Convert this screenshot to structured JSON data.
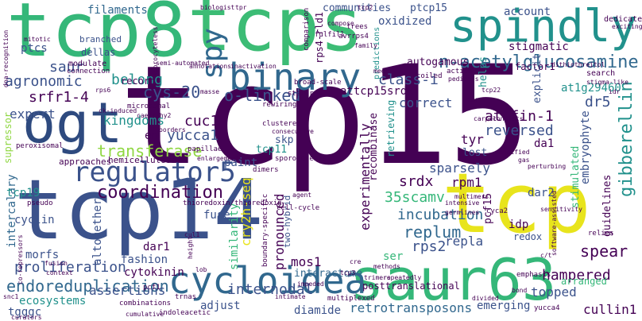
{
  "palette": {
    "dark_purple": "#440154",
    "indigo": "#3b528b",
    "blue": "#31688e",
    "teal": "#21918c",
    "green": "#35b779",
    "lime": "#90d743",
    "yellow": "#e8e41c"
  },
  "words": [
    {
      "text": "tcp15"
    },
    {
      "text": "tcp14"
    },
    {
      "text": "tcp8"
    },
    {
      "text": "tcps"
    },
    {
      "text": "tcp"
    },
    {
      "text": "saur63"
    },
    {
      "text": "ogt"
    },
    {
      "text": "spindly"
    },
    {
      "text": "binary"
    },
    {
      "text": "cycloidea"
    },
    {
      "text": "regulator5"
    },
    {
      "text": "spy"
    },
    {
      "text": "n-acetylglucosamine"
    },
    {
      "text": "gibberellin"
    },
    {
      "text": "coordination"
    },
    {
      "text": "endoreduplication"
    },
    {
      "text": "proliferation"
    },
    {
      "text": "transferase"
    },
    {
      "text": "cys-20"
    },
    {
      "text": "o-linked"
    },
    {
      "text": "agronomic"
    },
    {
      "text": "srfr1-4"
    },
    {
      "text": "belong"
    },
    {
      "text": "saur"
    },
    {
      "text": "expert"
    },
    {
      "text": "kingdoms"
    },
    {
      "text": "cuc1"
    },
    {
      "text": "yucca1"
    },
    {
      "text": "class-i"
    },
    {
      "text": "attcp15srdx"
    },
    {
      "text": "attfin-1"
    },
    {
      "text": "reversed"
    },
    {
      "text": "dr5"
    },
    {
      "text": "at1g29460"
    },
    {
      "text": "embryophyte"
    },
    {
      "text": "spear"
    },
    {
      "text": "hampered"
    },
    {
      "text": "cullin1"
    },
    {
      "text": "topped"
    },
    {
      "text": "emerging"
    },
    {
      "text": "retrotransposons"
    },
    {
      "text": "diamide"
    },
    {
      "text": "internodal"
    },
    {
      "text": "adjust"
    },
    {
      "text": "assertions"
    },
    {
      "text": "ecosystems"
    },
    {
      "text": "tgggc"
    },
    {
      "text": "replum"
    },
    {
      "text": "rps2"
    },
    {
      "text": "repla"
    },
    {
      "text": "incubation"
    },
    {
      "text": "35scamv"
    },
    {
      "text": "experimentally"
    },
    {
      "text": "srdx"
    },
    {
      "text": "rpm1"
    },
    {
      "text": "sparsely"
    },
    {
      "text": "correct"
    },
    {
      "text": "tyr"
    },
    {
      "text": "cry2h-seq"
    },
    {
      "text": "pronounced"
    },
    {
      "text": "similarity"
    },
    {
      "text": "mos1"
    },
    {
      "text": "interactome"
    },
    {
      "text": "dar1"
    },
    {
      "text": "fashion"
    },
    {
      "text": "cytokinin"
    },
    {
      "text": "altogether"
    },
    {
      "text": "intercalary"
    },
    {
      "text": "morfs"
    },
    {
      "text": "cyclin"
    },
    {
      "text": "tcp19"
    },
    {
      "text": "fuse"
    },
    {
      "text": "paint"
    },
    {
      "text": "tcp11"
    },
    {
      "text": "skp"
    },
    {
      "text": "en"
    },
    {
      "text": "filaments"
    },
    {
      "text": "ptcs"
    },
    {
      "text": "communities"
    },
    {
      "text": "oxidized"
    },
    {
      "text": "ptcp15"
    },
    {
      "text": "account"
    },
    {
      "text": "stigmatic"
    },
    {
      "text": "autogamous"
    },
    {
      "text": "rps4-rld1"
    },
    {
      "text": "dedicates"
    },
    {
      "text": "factor1"
    },
    {
      "text": "lost"
    },
    {
      "text": "helps"
    },
    {
      "text": "explicit"
    },
    {
      "text": "da1"
    },
    {
      "text": "dar2"
    },
    {
      "text": "idp"
    },
    {
      "text": "redox"
    },
    {
      "text": "pcf15"
    },
    {
      "text": "stimulated"
    },
    {
      "text": "guidelines"
    },
    {
      "text": "arranged"
    },
    {
      "text": "ser"
    },
    {
      "text": "recombinase"
    },
    {
      "text": "supressor"
    },
    {
      "text": "approaches"
    },
    {
      "text": "hemicelluloses"
    },
    {
      "text": "record"
    },
    {
      "text": "dellas"
    },
    {
      "text": "branched"
    },
    {
      "text": "modulate"
    },
    {
      "text": "connection"
    },
    {
      "text": "dna-recognition"
    },
    {
      "text": "mitotic"
    },
    {
      "text": "retrieving"
    },
    {
      "text": "two-hybrid"
    },
    {
      "text": "cyca2"
    },
    {
      "text": "search"
    },
    {
      "text": "predictions"
    },
    {
      "text": "coiled"
    },
    {
      "text": "action"
    },
    {
      "text": "comparison"
    },
    {
      "text": "fulfill"
    },
    {
      "text": "avrrps4"
    },
    {
      "text": "trees"
    },
    {
      "text": "compose"
    },
    {
      "text": "stature"
    },
    {
      "text": "broad-scale"
    },
    {
      "text": "posttranslational"
    },
    {
      "text": "multiplexed"
    },
    {
      "text": "trnas"
    },
    {
      "text": "combinations"
    },
    {
      "text": "co-repressors"
    },
    {
      "text": "fusion"
    },
    {
      "text": "context"
    },
    {
      "text": "thioredoxin/thioredoxin"
    },
    {
      "text": "boundary-specific"
    },
    {
      "text": "cell-cycle"
    },
    {
      "text": "germlines"
    },
    {
      "text": "intensive"
    },
    {
      "text": "software-assisted"
    },
    {
      "text": "sensitivity"
    },
    {
      "text": "emphasis"
    },
    {
      "text": "relies"
    },
    {
      "text": "yucca4"
    },
    {
      "text": "bond"
    },
    {
      "text": "pcf1"
    },
    {
      "text": "cumulative"
    },
    {
      "text": "indoleacetic"
    },
    {
      "text": "microsomal"
    },
    {
      "text": "masse"
    },
    {
      "text": "rewiring"
    },
    {
      "text": "clustered"
    },
    {
      "text": "consecutive"
    },
    {
      "text": "papillae"
    },
    {
      "text": "enlargement"
    },
    {
      "text": "sporogenesis"
    },
    {
      "text": "dimers"
    },
    {
      "text": "agent"
    },
    {
      "text": "pseudo"
    },
    {
      "text": "peroxisomal"
    },
    {
      "text": "ck-induced"
    },
    {
      "text": "cae1/shy2"
    },
    {
      "text": "annotations"
    },
    {
      "text": "inactivation"
    },
    {
      "text": "semi-automated"
    },
    {
      "text": "sporocyteless"
    },
    {
      "text": "biologist"
    },
    {
      "text": "tpr"
    },
    {
      "text": "tcp2"
    },
    {
      "text": "rps6"
    },
    {
      "text": "borders"
    },
    {
      "text": "family"
    },
    {
      "text": "meet"
    },
    {
      "text": "pedicels"
    },
    {
      "text": "dithiothreitol"
    },
    {
      "text": "stigma-like"
    },
    {
      "text": "idr"
    },
    {
      "text": "tcp22"
    },
    {
      "text": "ear"
    },
    {
      "text": "carpel"
    },
    {
      "text": "modified"
    },
    {
      "text": "gas"
    },
    {
      "text": "perturbing"
    },
    {
      "text": "consists"
    },
    {
      "text": "exciting"
    },
    {
      "text": "cre"
    },
    {
      "text": "methods"
    },
    {
      "text": "trimers"
    },
    {
      "text": "repeatedly"
    },
    {
      "text": "impeded"
    },
    {
      "text": "lob"
    },
    {
      "text": "height"
    },
    {
      "text": "snc1"
    },
    {
      "text": "curators"
    },
    {
      "text": "c/t"
    },
    {
      "text": "divided"
    },
    {
      "text": "tcp3"
    },
    {
      "text": "cul1"
    },
    {
      "text": "intimate"
    },
    {
      "text": "multimers"
    }
  ]
}
